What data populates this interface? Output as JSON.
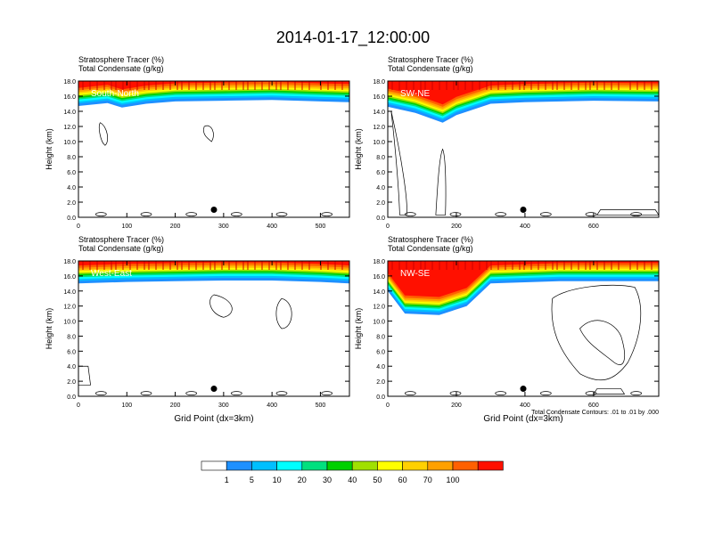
{
  "title": "2014-01-17_12:00:00",
  "panel_header": {
    "line1": "Stratosphere Tracer   (%)",
    "line2": "Total Condensate   (g/kg)"
  },
  "ylabel": "Height (km)",
  "xlabel": "Grid Point (dx=3km)",
  "contour_note": "Total Condensate Contours: .01 to .01 by .000",
  "chart_data": [
    {
      "type": "heatmap",
      "name": "South-North",
      "xlim": [
        0,
        560
      ],
      "ylim": [
        0,
        18
      ],
      "xticks": [
        0,
        100,
        200,
        300,
        400,
        500
      ],
      "yticks": [
        0.0,
        2.0,
        4.0,
        6.0,
        8.0,
        10.0,
        12.0,
        14.0,
        16.0,
        18.0
      ],
      "marker_x": 280,
      "marker_y": 1.0,
      "tracer_profile": [
        [
          0,
          14.7
        ],
        [
          60,
          15.1
        ],
        [
          90,
          14.5
        ],
        [
          140,
          15.0
        ],
        [
          200,
          15.3
        ],
        [
          300,
          15.4
        ],
        [
          400,
          15.5
        ],
        [
          500,
          15.3
        ],
        [
          560,
          15.2
        ]
      ],
      "xlabel": ""
    },
    {
      "type": "heatmap",
      "name": "SW-NE",
      "xlim": [
        0,
        790
      ],
      "ylim": [
        0,
        18
      ],
      "xticks": [
        0,
        200,
        400,
        600
      ],
      "yticks": [
        0.0,
        2.0,
        4.0,
        6.0,
        8.0,
        10.0,
        12.0,
        14.0,
        16.0,
        18.0
      ],
      "marker_x": 395,
      "marker_y": 1.0,
      "tracer_profile": [
        [
          0,
          14.6
        ],
        [
          80,
          13.8
        ],
        [
          160,
          12.5
        ],
        [
          200,
          13.5
        ],
        [
          300,
          15.0
        ],
        [
          400,
          15.2
        ],
        [
          600,
          15.4
        ],
        [
          790,
          15.3
        ]
      ],
      "xlabel": ""
    },
    {
      "type": "heatmap",
      "name": "West-East",
      "xlim": [
        0,
        560
      ],
      "ylim": [
        0,
        18
      ],
      "xticks": [
        0,
        100,
        200,
        300,
        400,
        500
      ],
      "yticks": [
        0.0,
        2.0,
        4.0,
        6.0,
        8.0,
        10.0,
        12.0,
        14.0,
        16.0,
        18.0
      ],
      "marker_x": 280,
      "marker_y": 1.0,
      "tracer_profile": [
        [
          0,
          15.0
        ],
        [
          100,
          15.2
        ],
        [
          200,
          15.3
        ],
        [
          300,
          15.4
        ],
        [
          400,
          15.4
        ],
        [
          500,
          15.2
        ],
        [
          560,
          15.0
        ]
      ],
      "xlabel": "Grid Point (dx=3km)"
    },
    {
      "type": "heatmap",
      "name": "NW-SE",
      "xlim": [
        0,
        790
      ],
      "ylim": [
        0,
        18
      ],
      "xticks": [
        0,
        200,
        400,
        600
      ],
      "yticks": [
        0.0,
        2.0,
        4.0,
        6.0,
        8.0,
        10.0,
        12.0,
        14.0,
        16.0,
        18.0
      ],
      "marker_x": 395,
      "marker_y": 1.0,
      "tracer_profile": [
        [
          0,
          14.0
        ],
        [
          50,
          11.0
        ],
        [
          150,
          10.8
        ],
        [
          230,
          12.0
        ],
        [
          300,
          15.0
        ],
        [
          500,
          15.3
        ],
        [
          790,
          15.3
        ]
      ],
      "xlabel": "Grid Point (dx=3km)"
    }
  ],
  "colorbar": {
    "colors": [
      "#ffffff",
      "#1e90ff",
      "#00bfff",
      "#00ffff",
      "#00e07f",
      "#00d000",
      "#a0e000",
      "#ffff00",
      "#ffd000",
      "#ffa000",
      "#ff6000",
      "#ff1000"
    ],
    "labels": [
      "1",
      "5",
      "10",
      "20",
      "30",
      "40",
      "50",
      "60",
      "70",
      "100"
    ]
  }
}
